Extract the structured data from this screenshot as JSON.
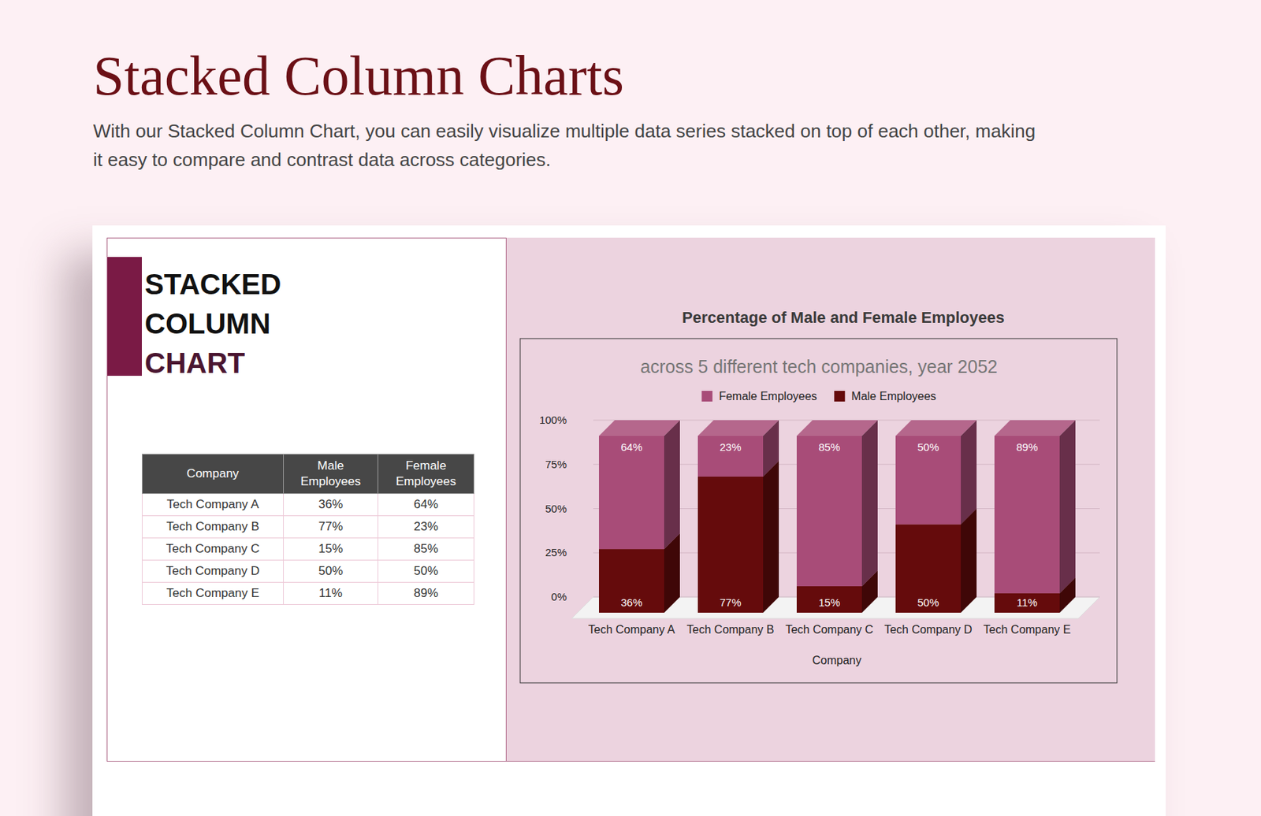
{
  "header": {
    "title": "Stacked Column Charts",
    "description": "With our Stacked Column Chart, you can easily visualize multiple data series stacked on top of each other, making it easy to compare and contrast data across categories."
  },
  "card_title": [
    "STACKED",
    "COLUMN",
    "CHART"
  ],
  "table": {
    "columns": [
      "Company",
      "Male Employees",
      "Female Employees"
    ],
    "rows": [
      [
        "Tech Company A",
        "36%",
        "64%"
      ],
      [
        "Tech Company B",
        "77%",
        "23%"
      ],
      [
        "Tech Company C",
        "15%",
        "85%"
      ],
      [
        "Tech Company D",
        "50%",
        "50%"
      ],
      [
        "Tech Company E",
        "11%",
        "89%"
      ]
    ]
  },
  "chart_data": {
    "type": "bar",
    "title": "Percentage of Male and Female Employees",
    "subtitle": "across 5 different tech companies, year 2052",
    "x_label": "Company",
    "categories": [
      "Tech Company A",
      "Tech Company B",
      "Tech Company C",
      "Tech Company D",
      "Tech Company E"
    ],
    "series": [
      {
        "name": "Male Employees",
        "color": "#650b0c",
        "values": [
          36,
          77,
          15,
          50,
          11
        ],
        "value_labels": [
          "36%",
          "77%",
          "15%",
          "50%",
          "11%"
        ]
      },
      {
        "name": "Female Employees",
        "color": "#a84c78",
        "values": [
          64,
          23,
          85,
          50,
          89
        ],
        "value_labels": [
          "64%",
          "23%",
          "85%",
          "50%",
          "89%"
        ]
      }
    ],
    "ylim": [
      0,
      100
    ],
    "yticks": [
      {
        "value": 0,
        "label": "0%"
      },
      {
        "value": 25,
        "label": "25%"
      },
      {
        "value": 50,
        "label": "50%"
      },
      {
        "value": 75,
        "label": "75%"
      },
      {
        "value": 100,
        "label": "100%"
      }
    ],
    "stacked": true,
    "data_labels": true,
    "grid": true,
    "legend": "top"
  }
}
